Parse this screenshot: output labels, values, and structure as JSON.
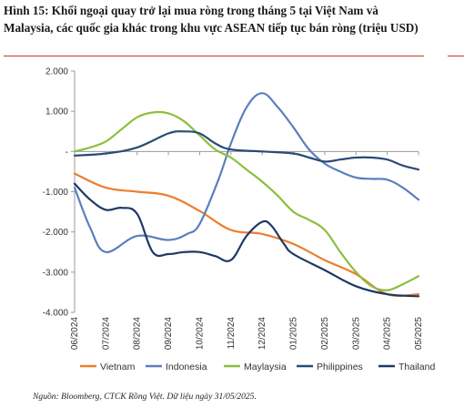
{
  "figure": {
    "title": "Hình 15: Khối ngoại quay trở lại mua ròng trong tháng 5 tại Việt Nam và Malaysia, các quốc gia khác trong khu vực ASEAN tiếp tục bán ròng (triệu USD)",
    "source": "Nguồn: Bloomberg, CTCK Rồng Việt. Dữ liệu ngày 31/05/2025."
  },
  "chart_data": {
    "type": "line",
    "title": "",
    "xlabel": "",
    "ylabel": "",
    "ylim": [
      -4000,
      2000
    ],
    "yticks": [
      2000,
      1000,
      0,
      -1000,
      -2000,
      -3000,
      -4000
    ],
    "ytick_labels": [
      "2.000",
      "1.000",
      "-",
      "-1.000",
      "-2.000",
      "-3.000",
      "-4.000"
    ],
    "categories": [
      "06/2024",
      "07/2024",
      "08/2024",
      "09/2024",
      "10/2024",
      "11/2024",
      "12/2024",
      "01/2025",
      "02/2025",
      "03/2025",
      "04/2025",
      "05/2025"
    ],
    "grid": false,
    "legend": "bottom",
    "series": [
      {
        "name": "Vietnam",
        "color": "#ed7d31",
        "x": [
          0,
          1,
          2,
          3,
          4,
          5,
          6,
          7,
          8,
          9,
          10,
          11
        ],
        "values": [
          -550,
          -900,
          -1000,
          -1100,
          -1480,
          -1950,
          -2050,
          -2300,
          -2700,
          -3050,
          -3550,
          -3550
        ]
      },
      {
        "name": "Indonesia",
        "color": "#5b7fbf",
        "x": [
          0,
          0.5,
          1,
          2,
          3,
          3.6,
          4,
          4.6,
          5,
          5.5,
          6,
          6.5,
          7,
          7.5,
          8,
          8.5,
          9,
          9.5,
          10,
          10.5,
          11
        ],
        "values": [
          -900,
          -1900,
          -2500,
          -2100,
          -2200,
          -2050,
          -1800,
          -700,
          200,
          1100,
          1450,
          1100,
          600,
          50,
          -300,
          -500,
          -650,
          -680,
          -700,
          -900,
          -1200
        ]
      },
      {
        "name": "Maylaysia",
        "color": "#8cbf3f",
        "x": [
          0,
          0.5,
          1,
          1.5,
          2,
          2.5,
          3,
          3.5,
          4,
          4.5,
          5,
          5.5,
          6,
          6.5,
          7,
          7.5,
          8,
          8.5,
          9,
          9.5,
          10,
          10.5,
          11
        ],
        "values": [
          0,
          100,
          250,
          550,
          850,
          970,
          950,
          750,
          400,
          50,
          -150,
          -450,
          -750,
          -1100,
          -1500,
          -1700,
          -1950,
          -2500,
          -3000,
          -3350,
          -3450,
          -3300,
          -3100
        ]
      },
      {
        "name": "Philippines",
        "color": "#2a4a78",
        "x": [
          0,
          1,
          2,
          3,
          3.5,
          4,
          4.5,
          5,
          6,
          7,
          7.5,
          8,
          8.5,
          9,
          9.5,
          10,
          10.5,
          11
        ],
        "values": [
          -100,
          -50,
          100,
          450,
          500,
          450,
          200,
          50,
          0,
          -50,
          -150,
          -250,
          -200,
          -150,
          -150,
          -200,
          -350,
          -450
        ]
      },
      {
        "name": "Thailand",
        "color": "#1f3864",
        "x": [
          0,
          0.5,
          1,
          1.5,
          2,
          2.5,
          3,
          3.5,
          4,
          4.5,
          5,
          5.5,
          6,
          6.3,
          6.7,
          7,
          8,
          9,
          10,
          11
        ],
        "values": [
          -800,
          -1200,
          -1450,
          -1400,
          -1550,
          -2500,
          -2550,
          -2500,
          -2500,
          -2600,
          -2700,
          -2100,
          -1750,
          -1850,
          -2300,
          -2550,
          -2950,
          -3350,
          -3550,
          -3600
        ]
      }
    ]
  }
}
